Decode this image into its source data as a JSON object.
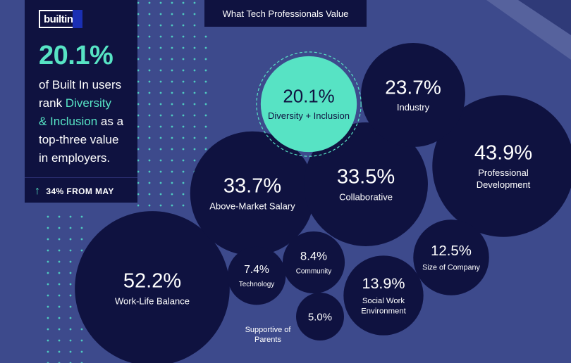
{
  "colors": {
    "background": "#3d4a8c",
    "navy": "#0f1240",
    "teal": "#57e3c4",
    "dots": "#4ec9c0"
  },
  "brand": {
    "logo_text": "builtin"
  },
  "title": "What Tech Professionals Value",
  "sidebar": {
    "headline_pct": "20.1%",
    "line1": "of Built In users",
    "line2_prefix": "rank ",
    "highlight1": "Diversity",
    "highlight2": "& Inclusion",
    "line3_suffix": " as a",
    "line4": "top-three value",
    "line5": "in employers.",
    "trend_icon": "arrow-up-icon",
    "trend_text": "34% FROM MAY"
  },
  "chart_data": {
    "type": "bubble",
    "title": "What Tech Professionals Value",
    "unit": "%",
    "series": [
      {
        "name": "Work-Life Balance",
        "value": 52.2,
        "display": "52.2%",
        "highlight": false
      },
      {
        "name": "Professional Development",
        "lines": [
          "Professional",
          "Development"
        ],
        "value": 43.9,
        "display": "43.9%",
        "highlight": false
      },
      {
        "name": "Above-Market Salary",
        "value": 33.7,
        "display": "33.7%",
        "highlight": false
      },
      {
        "name": "Collaborative",
        "value": 33.5,
        "display": "33.5%",
        "highlight": false
      },
      {
        "name": "Industry",
        "value": 23.7,
        "display": "23.7%",
        "highlight": false
      },
      {
        "name": "Diversity + Inclusion",
        "value": 20.1,
        "display": "20.1%",
        "highlight": true
      },
      {
        "name": "Social Work Environment",
        "lines": [
          "Social Work",
          "Environment"
        ],
        "value": 13.9,
        "display": "13.9%",
        "highlight": false
      },
      {
        "name": "Size of Company",
        "value": 12.5,
        "display": "12.5%",
        "highlight": false
      },
      {
        "name": "Community",
        "value": 8.4,
        "display": "8.4%",
        "highlight": false
      },
      {
        "name": "Technology",
        "value": 7.4,
        "display": "7.4%",
        "highlight": false
      },
      {
        "name": "Supportive of Parents",
        "lines": [
          "Supportive of",
          "Parents"
        ],
        "value": 5.0,
        "display": "5.0%",
        "highlight": false,
        "label_outside": true
      }
    ]
  }
}
